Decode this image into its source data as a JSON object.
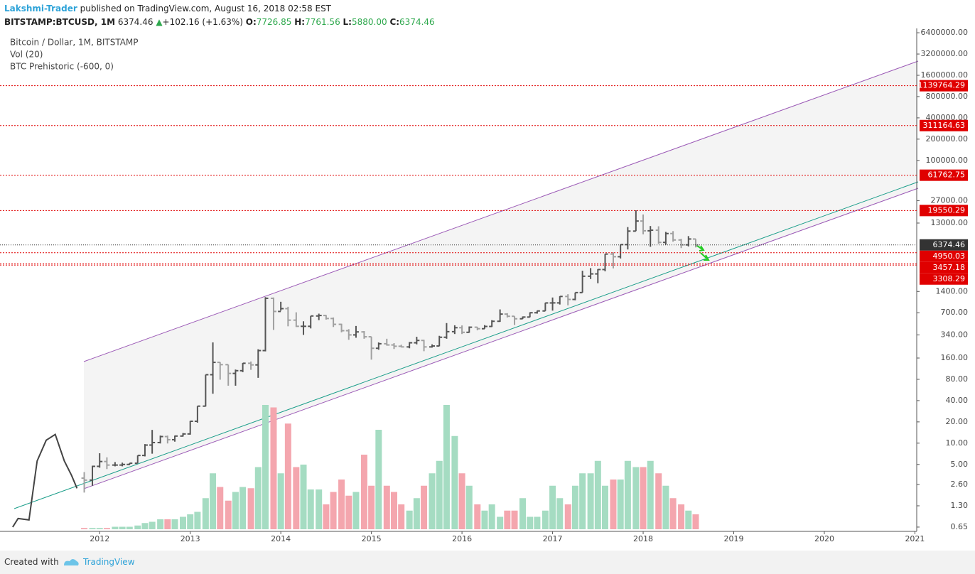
{
  "header": {
    "author": "Lakshmi-Trader",
    "published": "published on TradingView.com, August 16, 2018 02:58 EST",
    "symbol": "BITSTAMP:BTCUSD, 1M",
    "last": "6374.46",
    "arrow": "▲",
    "change": "+102.16 (+1.63%)",
    "o_label": "O:",
    "o": "7726.85",
    "h_label": "H:",
    "h": "7761.56",
    "l_label": "L:",
    "l": "5880.00",
    "c_label": "C:",
    "c": "6374.46"
  },
  "footer": {
    "created": "Created with",
    "brand": "TradingView"
  },
  "chart_data": {
    "type": "ohlc",
    "legend": [
      "Bitcoin / Dollar, 1M, BITSTAMP",
      "Vol (20)",
      "BTC Prehistoric (-600, 0)"
    ],
    "log_scale": true,
    "xlim": [
      2010.9,
      2021.02
    ],
    "xticks": [
      {
        "value": 2012,
        "label": "2012"
      },
      {
        "value": 2013,
        "label": "2013"
      },
      {
        "value": 2014,
        "label": "2014"
      },
      {
        "value": 2015,
        "label": "2015"
      },
      {
        "value": 2016,
        "label": "2016"
      },
      {
        "value": 2017,
        "label": "2017"
      },
      {
        "value": 2018,
        "label": "2018"
      },
      {
        "value": 2019,
        "label": "2019"
      },
      {
        "value": 2020,
        "label": "2020"
      },
      {
        "value": 2021,
        "label": "2021"
      }
    ],
    "ylim": [
      0.565,
      7370000
    ],
    "yticks": [
      {
        "value": 0.65,
        "label": "0.65"
      },
      {
        "value": 1.3,
        "label": "1.30"
      },
      {
        "value": 2.6,
        "label": "2.60"
      },
      {
        "value": 5,
        "label": "5.00"
      },
      {
        "value": 10,
        "label": "10.00"
      },
      {
        "value": 20,
        "label": "20.00"
      },
      {
        "value": 40,
        "label": "40.00"
      },
      {
        "value": 80,
        "label": "80.00"
      },
      {
        "value": 160,
        "label": "160.00"
      },
      {
        "value": 340,
        "label": "340.00"
      },
      {
        "value": 700,
        "label": "700.00"
      },
      {
        "value": 1400,
        "label": "1400.00"
      },
      {
        "value": 13000,
        "label": "13000.00"
      },
      {
        "value": 27000,
        "label": "27000.00"
      },
      {
        "value": 100000,
        "label": "100000.00"
      },
      {
        "value": 200000,
        "label": "200000.00"
      },
      {
        "value": 400000,
        "label": "400000.00"
      },
      {
        "value": 800000,
        "label": "800000.00"
      },
      {
        "value": 1600000,
        "label": "1600000.00"
      },
      {
        "value": 3200000,
        "label": "3200000.00"
      },
      {
        "value": 6400000,
        "label": "6400000.00"
      }
    ],
    "up_color": "#555555",
    "down_color": "#a0a0a0",
    "vol_up_color": "#a5dcc2",
    "vol_down_color": "#f4a6ae",
    "level_color": "#e00000",
    "last_color": "#333333",
    "levels": [
      1139764.29,
      311164.63,
      61762.75,
      19550.29,
      4950.03,
      3457.18,
      3308.29
    ],
    "last_price": 6374.46,
    "prehistoric": {
      "color": "#444444",
      "x": [
        2011.04,
        2011.1,
        2011.22,
        2011.31,
        2011.41,
        2011.51,
        2011.61,
        2011.69,
        2011.75
      ],
      "values": [
        0.65,
        0.86,
        0.82,
        5.6,
        11,
        13.3,
        5.6,
        3.5,
        2.3
      ]
    },
    "x": [
      2011.83,
      2011.92,
      2012.0,
      2012.08,
      2012.17,
      2012.25,
      2012.33,
      2012.42,
      2012.5,
      2012.58,
      2012.67,
      2012.75,
      2012.83,
      2012.92,
      2013.0,
      2013.08,
      2013.17,
      2013.25,
      2013.33,
      2013.42,
      2013.5,
      2013.58,
      2013.67,
      2013.75,
      2013.83,
      2013.92,
      2014.0,
      2014.08,
      2014.17,
      2014.25,
      2014.33,
      2014.42,
      2014.5,
      2014.58,
      2014.67,
      2014.75,
      2014.83,
      2014.92,
      2015.0,
      2015.08,
      2015.17,
      2015.25,
      2015.33,
      2015.42,
      2015.5,
      2015.58,
      2015.67,
      2015.75,
      2015.83,
      2015.92,
      2016.0,
      2016.08,
      2016.17,
      2016.25,
      2016.33,
      2016.42,
      2016.5,
      2016.58,
      2016.67,
      2016.75,
      2016.83,
      2016.92,
      2017.0,
      2017.08,
      2017.17,
      2017.25,
      2017.33,
      2017.42,
      2017.5,
      2017.58,
      2017.67,
      2017.75,
      2017.83,
      2017.92,
      2018.0,
      2018.08,
      2018.17,
      2018.25,
      2018.33,
      2018.42,
      2018.5,
      2018.58
    ],
    "open": [
      3.2,
      3.0,
      4.7,
      5.5,
      4.9,
      4.9,
      5.0,
      5.2,
      6.7,
      9.4,
      10.2,
      12.4,
      11.2,
      12.6,
      13.5,
      20.4,
      33.4,
      93,
      139,
      129,
      97,
      106,
      135,
      128,
      204,
      1120,
      730,
      800,
      550,
      450,
      450,
      630,
      640,
      580,
      480,
      390,
      340,
      375,
      320,
      220,
      255,
      245,
      235,
      230,
      263,
      284,
      230,
      237,
      315,
      378,
      430,
      370,
      437,
      416,
      448,
      530,
      670,
      624,
      575,
      608,
      700,
      742,
      963,
      965,
      1190,
      1080,
      1350,
      2300,
      2480,
      2860,
      4730,
      4340,
      6440,
      10000,
      13880,
      10100,
      10300,
      6920,
      9240,
      7490,
      6390,
      7727
    ],
    "high": [
      3.9,
      4.8,
      7.2,
      6.3,
      5.4,
      5.3,
      5.2,
      6.7,
      9.7,
      15.4,
      12.8,
      12.8,
      12.8,
      13.9,
      20.6,
      33.4,
      93,
      266,
      140,
      129,
      110,
      136,
      143,
      213,
      1163,
      1150,
      1000,
      850,
      710,
      530,
      630,
      680,
      650,
      600,
      490,
      410,
      455,
      385,
      320,
      266,
      300,
      260,
      247,
      270,
      320,
      290,
      250,
      330,
      500,
      465,
      463,
      448,
      440,
      468,
      550,
      780,
      690,
      625,
      620,
      710,
      750,
      970,
      1150,
      1200,
      1280,
      1350,
      2750,
      3000,
      2900,
      4750,
      5000,
      6470,
      11400,
      19666,
      17200,
      11800,
      11700,
      9750,
      10000,
      7780,
      8500,
      7762
    ],
    "low": [
      2.0,
      2.5,
      4.5,
      4.3,
      4.7,
      4.7,
      4.9,
      5.2,
      6.5,
      7.1,
      9.9,
      9.9,
      10.5,
      12.4,
      13.2,
      19.5,
      33,
      50,
      79,
      65,
      65,
      101,
      109,
      84,
      199,
      400,
      750,
      450,
      440,
      340,
      420,
      550,
      560,
      440,
      370,
      290,
      310,
      300,
      152,
      210,
      240,
      215,
      226,
      220,
      250,
      200,
      225,
      235,
      300,
      350,
      350,
      365,
      395,
      415,
      440,
      520,
      600,
      470,
      570,
      605,
      680,
      740,
      750,
      915,
      890,
      1050,
      1350,
      2100,
      1830,
      2700,
      2970,
      4100,
      5500,
      10000,
      9000,
      6000,
      6600,
      6430,
      7080,
      5750,
      6070,
      5880
    ],
    "close": [
      3.0,
      4.7,
      5.5,
      4.9,
      4.9,
      5.0,
      5.2,
      6.7,
      9.4,
      10.2,
      12.4,
      11.2,
      12.6,
      13.5,
      20.4,
      33.4,
      93,
      139,
      129,
      97,
      106,
      135,
      128,
      204,
      1120,
      730,
      800,
      550,
      450,
      450,
      630,
      640,
      580,
      480,
      390,
      340,
      375,
      320,
      220,
      255,
      245,
      235,
      230,
      263,
      284,
      230,
      237,
      315,
      378,
      430,
      370,
      437,
      416,
      448,
      530,
      670,
      624,
      575,
      608,
      700,
      742,
      963,
      965,
      1190,
      1080,
      1350,
      2300,
      2480,
      2860,
      4730,
      4340,
      6440,
      10000,
      13880,
      10100,
      10300,
      6920,
      9240,
      7490,
      6390,
      7730,
      6374
    ],
    "volume": [
      1,
      1,
      1,
      1,
      2,
      2,
      2,
      3,
      5,
      6,
      8,
      8,
      8,
      10,
      12,
      14,
      25,
      45,
      34,
      23,
      30,
      34,
      33,
      50,
      100,
      98,
      45,
      85,
      50,
      52,
      32,
      32,
      20,
      30,
      40,
      27,
      30,
      60,
      35,
      80,
      35,
      30,
      20,
      15,
      25,
      35,
      45,
      55,
      100,
      75,
      45,
      35,
      20,
      15,
      20,
      10,
      15,
      15,
      25,
      10,
      10,
      15,
      35,
      25,
      20,
      35,
      45,
      45,
      55,
      35,
      40,
      40,
      55,
      50,
      50,
      55,
      45,
      35,
      25,
      20,
      15,
      12
    ]
  }
}
